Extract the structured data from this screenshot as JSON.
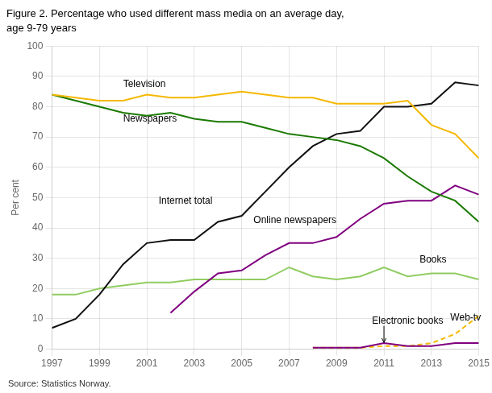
{
  "chart_data": {
    "type": "line",
    "title": "Figure 2. Percentage who used different mass media on an average day,",
    "subtitle": "age 9-79 years",
    "y_label": "Per cent",
    "source": "Source: Statistics Norway.",
    "xlim": [
      1997,
      2015
    ],
    "xticks": [
      1997,
      1999,
      2001,
      2003,
      2005,
      2007,
      2009,
      2011,
      2013,
      2015
    ],
    "ylim": [
      0,
      100
    ],
    "yticks": [
      0,
      10,
      20,
      30,
      40,
      50,
      60,
      70,
      80,
      90,
      100
    ],
    "grid": true,
    "series": [
      {
        "name": "Television",
        "color": "#f5b800",
        "line_style": "solid",
        "x": [
          1997,
          1998,
          1999,
          2000,
          2001,
          2002,
          2003,
          2004,
          2005,
          2006,
          2007,
          2008,
          2009,
          2010,
          2011,
          2012,
          2013,
          2014,
          2015
        ],
        "values": [
          84,
          83,
          82,
          82,
          84,
          83,
          83,
          84,
          85,
          84,
          83,
          83,
          81,
          81,
          81,
          82,
          74,
          71,
          63
        ]
      },
      {
        "name": "Newspapers",
        "color": "#1a7a00",
        "line_style": "solid",
        "x": [
          1997,
          1998,
          1999,
          2000,
          2001,
          2002,
          2003,
          2004,
          2005,
          2006,
          2007,
          2008,
          2009,
          2010,
          2011,
          2012,
          2013,
          2014,
          2015
        ],
        "values": [
          84,
          82,
          80,
          78,
          77,
          78,
          76,
          75,
          75,
          73,
          71,
          70,
          69,
          67,
          63,
          57,
          52,
          49,
          42
        ]
      },
      {
        "name": "Internet total",
        "color": "#111111",
        "line_style": "solid",
        "x": [
          1997,
          1998,
          1999,
          2000,
          2001,
          2002,
          2003,
          2004,
          2005,
          2006,
          2007,
          2008,
          2009,
          2010,
          2011,
          2012,
          2013,
          2014,
          2015
        ],
        "values": [
          7,
          10,
          18,
          28,
          35,
          36,
          36,
          42,
          44,
          52,
          60,
          67,
          71,
          72,
          80,
          80,
          81,
          88,
          87
        ]
      },
      {
        "name": "Online newspapers",
        "color": "#800080",
        "line_style": "solid",
        "x": [
          2002,
          2003,
          2004,
          2005,
          2006,
          2007,
          2008,
          2009,
          2010,
          2011,
          2012,
          2013,
          2014,
          2015
        ],
        "values": [
          12,
          19,
          25,
          26,
          31,
          35,
          35,
          37,
          43,
          48,
          49,
          49,
          54,
          51
        ]
      },
      {
        "name": "Books",
        "color": "#90cc60",
        "line_style": "solid",
        "x": [
          1997,
          1998,
          1999,
          2000,
          2001,
          2002,
          2003,
          2004,
          2005,
          2006,
          2007,
          2008,
          2009,
          2010,
          2011,
          2012,
          2013,
          2014,
          2015
        ],
        "values": [
          18,
          18,
          20,
          21,
          22,
          22,
          23,
          23,
          23,
          23,
          27,
          24,
          23,
          24,
          27,
          24,
          25,
          25,
          23
        ]
      },
      {
        "name": "Electronic books",
        "color": "#800080",
        "line_style": "solid",
        "x": [
          2008,
          2009,
          2010,
          2011,
          2012,
          2013,
          2014,
          2015
        ],
        "values": [
          0.5,
          0.5,
          0.5,
          2,
          1,
          1,
          2,
          2
        ]
      },
      {
        "name": "Web-tv",
        "color": "#f5b800",
        "line_style": "dashed",
        "x": [
          2008,
          2009,
          2010,
          2011,
          2012,
          2013,
          2014,
          2015
        ],
        "values": [
          0.5,
          0.5,
          0.5,
          1,
          1,
          2,
          5,
          11
        ]
      }
    ],
    "annotations": [
      {
        "text": "Television",
        "x": 2000.0,
        "y": 86.5
      },
      {
        "text": "Newspapers",
        "x": 2000.0,
        "y": 75.0
      },
      {
        "text": "Internet total",
        "x": 2001.5,
        "y": 48.0
      },
      {
        "text": "Online newspapers",
        "x": 2005.5,
        "y": 41.5
      },
      {
        "text": "Books",
        "x": 2012.5,
        "y": 28.5
      },
      {
        "text": "Electronic books",
        "x": 2010.5,
        "y": 8.5,
        "arrow_to": [
          2011.0,
          2.2
        ]
      },
      {
        "text": "Web-tv",
        "x": 2013.8,
        "y": 9.5
      }
    ]
  }
}
